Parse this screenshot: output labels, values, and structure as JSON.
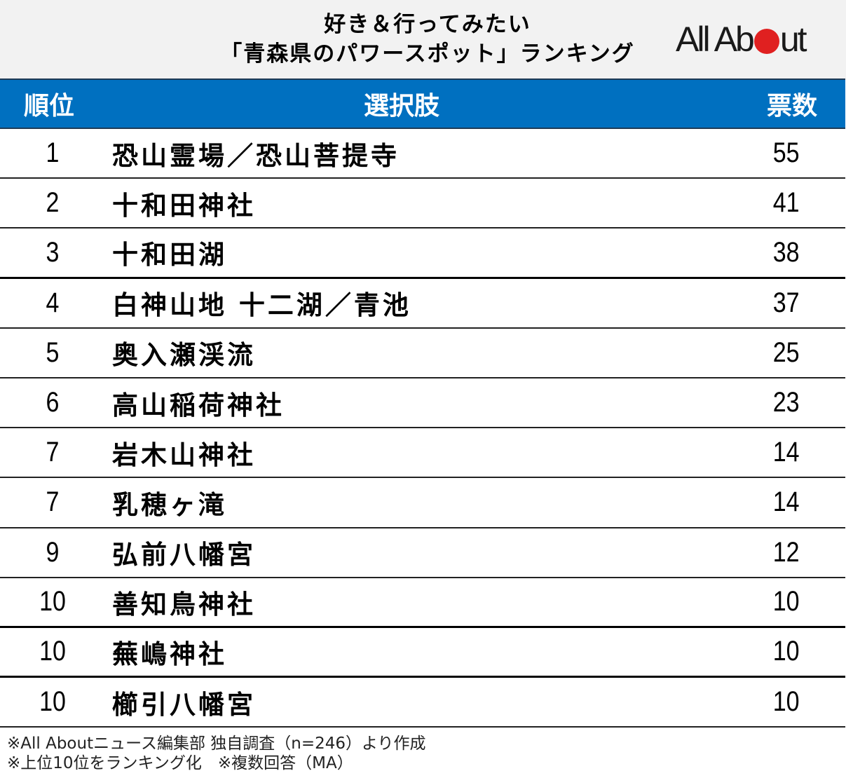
{
  "header": {
    "title_line1": "好き＆行ってみたい",
    "title_line2": "「青森県のパワースポット」ランキング",
    "logo": {
      "pre": "All Ab",
      "post": "ut",
      "dot_color": "#e02020"
    }
  },
  "table": {
    "header_color": "#0070c0",
    "columns": {
      "rank": "順位",
      "choice": "選択肢",
      "votes": "票数"
    },
    "rows": [
      {
        "rank": "1",
        "name": "恐山霊場／恐山菩提寺",
        "votes": "55"
      },
      {
        "rank": "2",
        "name": "十和田神社",
        "votes": "41"
      },
      {
        "rank": "3",
        "name": "十和田湖",
        "votes": "38"
      },
      {
        "rank": "4",
        "name": "白神山地 十二湖／青池",
        "votes": "37"
      },
      {
        "rank": "5",
        "name": "奥入瀬渓流",
        "votes": "25"
      },
      {
        "rank": "6",
        "name": "高山稲荷神社",
        "votes": "23"
      },
      {
        "rank": "7",
        "name": "岩木山神社",
        "votes": "14"
      },
      {
        "rank": "7",
        "name": "乳穂ヶ滝",
        "votes": "14"
      },
      {
        "rank": "9",
        "name": "弘前八幡宮",
        "votes": "12"
      },
      {
        "rank": "10",
        "name": "善知鳥神社",
        "votes": "10"
      },
      {
        "rank": "10",
        "name": "蕪嶋神社",
        "votes": "10"
      },
      {
        "rank": "10",
        "name": "櫛引八幡宮",
        "votes": "10"
      }
    ]
  },
  "footnotes": {
    "line1": "※All Aboutニュース編集部 独自調査（n=246）より作成",
    "line2": "※上位10位をランキング化　※複数回答（MA）"
  },
  "chart_data": {
    "type": "table",
    "title": "好き＆行ってみたい「青森県のパワースポット」ランキング",
    "columns": [
      "順位",
      "選択肢",
      "票数"
    ],
    "categories": [
      "恐山霊場／恐山菩提寺",
      "十和田神社",
      "十和田湖",
      "白神山地 十二湖／青池",
      "奥入瀬渓流",
      "高山稲荷神社",
      "岩木山神社",
      "乳穂ヶ滝",
      "弘前八幡宮",
      "善知鳥神社",
      "蕪嶋神社",
      "櫛引八幡宮"
    ],
    "ranks": [
      1,
      2,
      3,
      4,
      5,
      6,
      7,
      7,
      9,
      10,
      10,
      10
    ],
    "values": [
      55,
      41,
      38,
      37,
      25,
      23,
      14,
      14,
      12,
      10,
      10,
      10
    ],
    "notes": [
      "※All Aboutニュース編集部 独自調査（n=246）より作成",
      "※上位10位をランキング化　※複数回答（MA）"
    ]
  }
}
